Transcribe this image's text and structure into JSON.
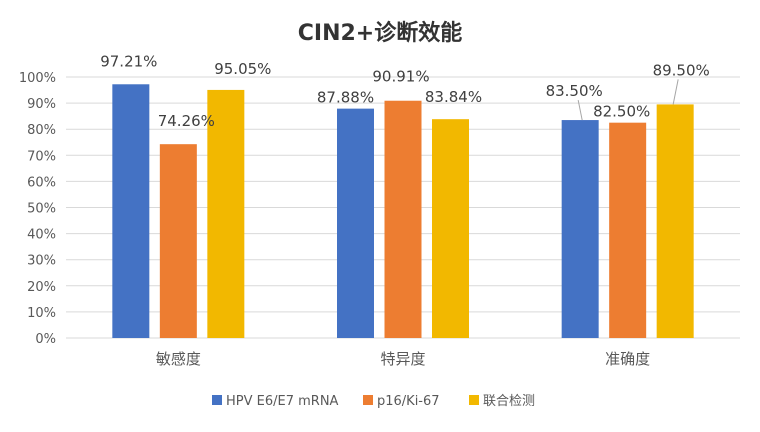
{
  "chart_data": {
    "type": "bar",
    "title": "CIN2+诊断效能",
    "categories": [
      "敏感度",
      "特异度",
      "准确度"
    ],
    "series": [
      {
        "name": "HPV E6/E7 mRNA",
        "color": "#4472C4",
        "values": [
          97.21,
          87.88,
          83.5
        ],
        "labels": [
          "97.21%",
          "87.88%",
          "83.50%"
        ]
      },
      {
        "name": "p16/Ki-67",
        "color": "#ED7D31",
        "values": [
          74.26,
          90.91,
          82.5
        ],
        "labels": [
          "74.26%",
          "90.91%",
          "82.50%"
        ]
      },
      {
        "name": "联合检测",
        "color": "#F2B800",
        "values": [
          95.05,
          83.84,
          89.5
        ],
        "labels": [
          "95.05%",
          "83.84%",
          "89.50%"
        ]
      }
    ],
    "ylim": [
      0,
      100
    ],
    "yticks": [
      "0%",
      "10%",
      "20%",
      "30%",
      "40%",
      "50%",
      "60%",
      "70%",
      "80%",
      "90%",
      "100%"
    ],
    "ytick_values": [
      0,
      10,
      20,
      30,
      40,
      50,
      60,
      70,
      80,
      90,
      100
    ],
    "grid": true,
    "legend": "bottom",
    "xlabel": "",
    "ylabel": ""
  }
}
